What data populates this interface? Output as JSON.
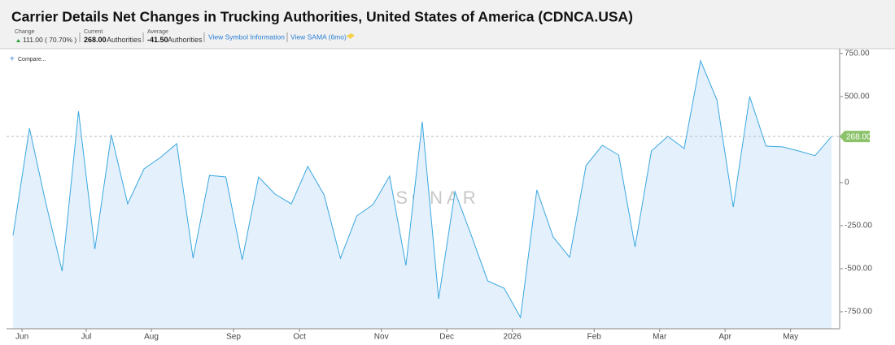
{
  "header": {
    "title": "Carrier Details Net Changes  in Trucking Authorities, United States of America (CDNCA.USA)",
    "change": {
      "label": "Change",
      "value": "111.00",
      "percent": "( 70.70% )"
    },
    "current": {
      "label": "Current",
      "value": "268.00",
      "unit": "Authorities"
    },
    "average": {
      "label": "Average",
      "value": "-41.50",
      "unit": "Authorities"
    },
    "links": [
      "View Symbol Information",
      "View SAMA (6mo)"
    ],
    "compare": "Compare...",
    "watermark": "SONAR"
  },
  "chart_data": {
    "type": "area",
    "x": [
      0,
      1,
      2,
      3,
      4,
      5,
      6,
      7,
      8,
      9,
      10,
      11,
      12,
      13,
      14,
      15,
      16,
      17,
      18,
      19,
      20,
      21,
      22,
      23,
      24,
      25,
      26,
      27,
      28,
      29,
      30,
      31,
      32,
      33,
      34,
      35,
      36,
      37,
      38,
      39,
      40,
      41,
      42,
      43,
      44,
      45,
      46,
      47,
      48,
      49,
      50
    ],
    "series": [
      {
        "name": "CDNCA.USA",
        "color": "#3aa8e0",
        "values": [
          -307,
          316,
          -118,
          -514,
          415,
          -387,
          278,
          -123,
          80,
          146,
          226,
          -439,
          42,
          33,
          -448,
          33,
          -66,
          -123,
          94,
          -71,
          -439,
          -193,
          -127,
          38,
          -481,
          354,
          -675,
          -52,
          -307,
          -571,
          -613,
          -783,
          -42,
          -316,
          -434,
          99,
          217,
          160,
          -373,
          184,
          269,
          198,
          708,
          481,
          -142,
          500,
          212,
          208,
          184,
          157,
          268
        ]
      }
    ],
    "xlim": [
      -0.4,
      50.5
    ],
    "xticks": [
      {
        "value": 0.55,
        "label": "Jun"
      },
      {
        "value": 4.47,
        "label": "Jul"
      },
      {
        "value": 8.45,
        "label": "Aug"
      },
      {
        "value": 13.47,
        "label": "Sep"
      },
      {
        "value": 17.5,
        "label": "Oct"
      },
      {
        "value": 22.5,
        "label": "Nov"
      },
      {
        "value": 26.5,
        "label": "Dec"
      },
      {
        "value": 30.5,
        "label": "2026"
      },
      {
        "value": 35.5,
        "label": "Feb"
      },
      {
        "value": 39.5,
        "label": "Mar"
      },
      {
        "value": 43.5,
        "label": "Apr"
      },
      {
        "value": 47.5,
        "label": "May"
      }
    ],
    "ylim": [
      -849,
      778
    ],
    "yticks": [
      {
        "value": 750,
        "label": "750.00"
      },
      {
        "value": 500,
        "label": "500.00"
      },
      0,
      {
        "value": -250,
        "label": "-250.00"
      },
      {
        "value": -500,
        "label": "-500.00"
      },
      {
        "value": -750,
        "label": "-750.00"
      }
    ],
    "fill_color": "#e4f0fc"
  }
}
